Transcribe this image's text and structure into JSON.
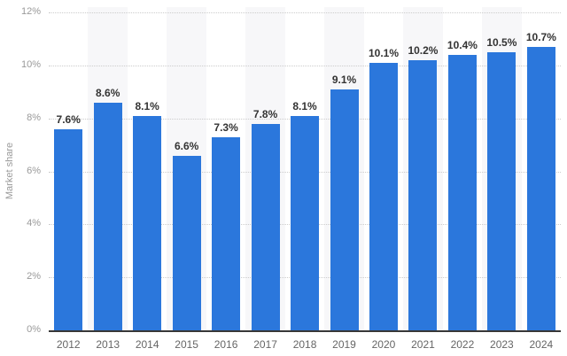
{
  "chart_data": {
    "type": "bar",
    "title": "",
    "xlabel": "",
    "ylabel": "Market share",
    "categories": [
      "2012",
      "2013",
      "2014",
      "2015",
      "2016",
      "2017",
      "2018",
      "2019",
      "2020",
      "2021",
      "2022",
      "2023",
      "2024"
    ],
    "values": [
      7.6,
      8.6,
      8.1,
      6.6,
      7.3,
      7.8,
      8.1,
      9.1,
      10.1,
      10.2,
      10.4,
      10.5,
      10.7
    ],
    "value_labels": [
      "7.6%",
      "8.6%",
      "8.1%",
      "6.6%",
      "7.3%",
      "7.8%",
      "8.1%",
      "9.1%",
      "10.1%",
      "10.2%",
      "10.4%",
      "10.5%",
      "10.7%"
    ],
    "ylim": [
      0,
      12
    ],
    "y_ticks": [
      {
        "value": 0,
        "label": "0%"
      },
      {
        "value": 2,
        "label": "2%"
      },
      {
        "value": 4,
        "label": "4%"
      },
      {
        "value": 6,
        "label": "6%"
      },
      {
        "value": 8,
        "label": "8%"
      },
      {
        "value": 10,
        "label": "10%"
      },
      {
        "value": 12,
        "label": "12%"
      }
    ],
    "grid": "horizontal-dotted",
    "legend": "none",
    "band_stripes": "alternating, gray on odd categories starting with 2013",
    "colors": {
      "bar": "#2b77dc",
      "band_stripe": "#f7f7f9",
      "gridline": "#cccccc",
      "axis_line": "#383838",
      "y_tick_label": "#999999",
      "x_label": "#666666",
      "value_label": "#333333",
      "background": "#ffffff"
    }
  }
}
